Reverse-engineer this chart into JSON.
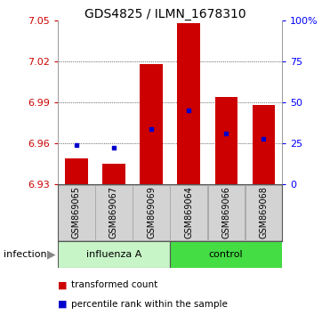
{
  "title": "GDS4825 / ILMN_1678310",
  "samples": [
    "GSM869065",
    "GSM869067",
    "GSM869069",
    "GSM869064",
    "GSM869066",
    "GSM869068"
  ],
  "bar_base": 6.93,
  "bar_tops": [
    6.949,
    6.945,
    7.018,
    7.048,
    6.994,
    6.988
  ],
  "percentile_values": [
    6.9585,
    6.957,
    6.9705,
    6.984,
    6.9675,
    6.963
  ],
  "ylim_min": 6.93,
  "ylim_max": 7.05,
  "yticks_left": [
    6.93,
    6.96,
    6.99,
    7.02,
    7.05
  ],
  "yticks_right_pct": [
    0,
    25,
    50,
    75,
    100
  ],
  "bar_color": "#cc0000",
  "percentile_color": "#0000cc",
  "group1_color": "#c8f5c8",
  "group2_color": "#44dd44",
  "sample_box_color": "#d3d3d3",
  "legend_red": "transformed count",
  "legend_blue": "percentile rank within the sample",
  "label_infection": "infection"
}
